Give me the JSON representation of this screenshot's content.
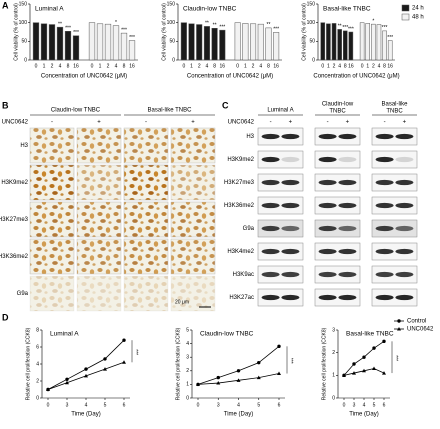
{
  "panel_labels": [
    "A",
    "B",
    "C",
    "D"
  ],
  "chart_data": [
    {
      "type": "bar",
      "title": "Luminal A",
      "categories": [
        "0",
        "1",
        "2",
        "4",
        "8",
        "16"
      ],
      "x_label": "Concentration of UNC0642 (μM)",
      "y_label": "Cell viability (% of control)",
      "ylim": [
        0,
        150
      ],
      "yticks": [
        0,
        50,
        100,
        150
      ],
      "series": [
        {
          "color": "#1a1a1a",
          "values": [
            100,
            97,
            95,
            88,
            77,
            65
          ],
          "annotations": [
            null,
            null,
            null,
            "**",
            "***",
            "***"
          ]
        },
        {
          "color": "#f2f2f2",
          "values": [
            100,
            97,
            96,
            92,
            72,
            52
          ],
          "annotations": [
            null,
            null,
            null,
            "*",
            "***",
            "***"
          ]
        }
      ]
    },
    {
      "type": "bar",
      "title": "Claudin-low TNBC",
      "categories": [
        "0",
        "1",
        "2",
        "4",
        "8",
        "16"
      ],
      "x_label": "Concentration of UNC0642 (μM)",
      "y_label": "Cell viability (% of control)",
      "ylim": [
        0,
        150
      ],
      "yticks": [
        0,
        50,
        100,
        150
      ],
      "series": [
        {
          "color": "#1a1a1a",
          "values": [
            100,
            97,
            95,
            90,
            85,
            80
          ],
          "annotations": [
            null,
            null,
            null,
            "**",
            "**",
            "***"
          ]
        },
        {
          "color": "#f2f2f2",
          "values": [
            100,
            98,
            97,
            96,
            86,
            74
          ],
          "annotations": [
            null,
            null,
            null,
            null,
            "**",
            "***"
          ]
        }
      ]
    },
    {
      "type": "bar",
      "title": "Basal-like TNBC",
      "categories": [
        "0",
        "1",
        "2",
        "4",
        "8",
        "16"
      ],
      "x_label": "Concentration of UNC0642 (μM)",
      "y_label": "Cell viability (% of control)",
      "ylim": [
        0,
        150
      ],
      "yticks": [
        0,
        50,
        100,
        150
      ],
      "series": [
        {
          "name": "24 h",
          "color": "#1a1a1a",
          "values": [
            100,
            97,
            98,
            82,
            78,
            75
          ],
          "annotations": [
            null,
            null,
            null,
            "**",
            "***",
            "***"
          ]
        },
        {
          "name": "48 h",
          "color": "#f2f2f2",
          "values": [
            100,
            98,
            96,
            95,
            78,
            52
          ],
          "annotations": [
            null,
            null,
            "*",
            null,
            "***",
            "***"
          ]
        }
      ]
    },
    {
      "type": "line",
      "title": "Luminal A",
      "categories": [
        "0",
        "3",
        "4",
        "5",
        "6"
      ],
      "x_label": "Time (Day)",
      "y_label": "Relative cell proliferation (CCK8)",
      "ylim": [
        0,
        8
      ],
      "yticks": [
        0,
        2,
        4,
        6,
        8
      ],
      "annotation": "***",
      "series": [
        {
          "color": "#000000",
          "values": [
            1,
            2.2,
            3.4,
            4.6,
            6.8
          ]
        },
        {
          "color": "#000000",
          "values": [
            1,
            1.8,
            2.6,
            3.4,
            4.2
          ]
        }
      ]
    },
    {
      "type": "line",
      "title": "Claudin-low TNBC",
      "categories": [
        "0",
        "3",
        "4",
        "5",
        "6"
      ],
      "x_label": "Time (Day)",
      "y_label": "Relative cell proliferation (CCK8)",
      "ylim": [
        0,
        5
      ],
      "yticks": [
        0,
        1,
        2,
        3,
        4,
        5
      ],
      "annotation": "***",
      "series": [
        {
          "color": "#000000",
          "values": [
            1,
            1.5,
            2,
            2.6,
            3.8
          ]
        },
        {
          "color": "#000000",
          "values": [
            1,
            1.1,
            1.3,
            1.5,
            1.8
          ]
        }
      ]
    },
    {
      "type": "line",
      "title": "Basal-like TNBC",
      "categories": [
        "0",
        "3",
        "4",
        "5",
        "6"
      ],
      "x_label": "Time (Day)",
      "y_label": "Relative cell proliferation (CCK8)",
      "ylim": [
        0,
        3
      ],
      "yticks": [
        0,
        1,
        2,
        3
      ],
      "annotation": "***",
      "series": [
        {
          "name": "Control",
          "color": "#000000",
          "values": [
            1,
            1.5,
            1.8,
            2.2,
            2.5
          ]
        },
        {
          "name": "UNC0642",
          "color": "#000000",
          "values": [
            1,
            1.1,
            1.2,
            1.3,
            1.1
          ]
        }
      ]
    }
  ],
  "panel_b": {
    "groups": [
      "Claudin-low TNBC",
      "Basal-like TNBC"
    ],
    "treatment_label": "UNC0642",
    "treatments": [
      "-",
      "+"
    ],
    "rows": [
      "H3",
      "H3K9me2",
      "H3K27me3",
      "H3K36me2",
      "G9a"
    ],
    "scale_bar": "20 μm"
  },
  "panel_c": {
    "groups": [
      [
        "Luminal A"
      ],
      [
        "Claudin-low",
        "TNBC"
      ],
      [
        "Basal-like",
        "TNBC"
      ]
    ],
    "treatment_label": "UNC0642",
    "treatments": [
      "-",
      "+"
    ],
    "rows": [
      "H3",
      "H3K9me2",
      "H3K27me3",
      "H3K36me2",
      "G9a",
      "H3K4me2",
      "H3K9ac",
      "H3K27ac"
    ]
  }
}
